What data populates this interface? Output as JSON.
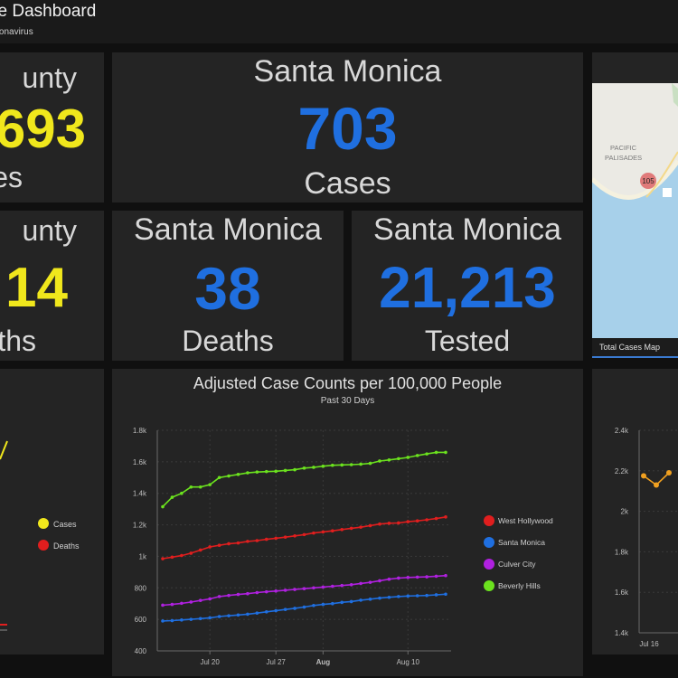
{
  "header": {
    "title": "se Dashboard",
    "subtitle": "oronavirus"
  },
  "colors": {
    "county": "#f0e71c",
    "santa_monica": "#1f6fe0",
    "panel_bg": "#242424"
  },
  "cards": {
    "county_cases": {
      "label": "unty",
      "value": "693",
      "caption": "es"
    },
    "sm_cases": {
      "label": "Santa Monica",
      "value": "703",
      "caption": "Cases"
    },
    "county_deaths": {
      "label": "unty",
      "value": "14",
      "caption": "ths"
    },
    "sm_deaths": {
      "label": "Santa Monica",
      "value": "38",
      "caption": "Deaths"
    },
    "sm_tested": {
      "label": "Santa Monica",
      "value": "21,213",
      "caption": "Tested"
    }
  },
  "map": {
    "place_label_1": "PACIFIC",
    "place_label_2": "PALISADES",
    "route_shield": "105",
    "tab_label": "Total Cases Map"
  },
  "left_legend": {
    "items": [
      {
        "label": "Cases",
        "color": "#f0e71c"
      },
      {
        "label": "Deaths",
        "color": "#e01e1e"
      }
    ]
  },
  "chart_data": [
    {
      "type": "line",
      "title": "Adjusted Case Counts per 100,000 People",
      "subtitle": "Past 30 Days",
      "xlabel": "",
      "ylabel": "",
      "ylim": [
        400,
        1800
      ],
      "y_ticks": [
        "400",
        "600",
        "800",
        "1k",
        "1.2k",
        "1.4k",
        "1.6k",
        "1.8k"
      ],
      "x_ticks": [
        {
          "label": "Jul 20",
          "index": 5,
          "bold": false
        },
        {
          "label": "Jul 27",
          "index": 12,
          "bold": false
        },
        {
          "label": "Aug",
          "index": 17,
          "bold": true
        },
        {
          "label": "Aug 10",
          "index": 26,
          "bold": false
        }
      ],
      "grid": true,
      "legend": "right",
      "series": [
        {
          "name": "West Hollywood",
          "color": "#e01e1e",
          "values": [
            985,
            995,
            1005,
            1020,
            1040,
            1060,
            1070,
            1080,
            1085,
            1095,
            1100,
            1108,
            1115,
            1122,
            1130,
            1138,
            1148,
            1155,
            1162,
            1170,
            1178,
            1185,
            1195,
            1205,
            1210,
            1212,
            1220,
            1225,
            1232,
            1240,
            1250
          ]
        },
        {
          "name": "Santa Monica",
          "color": "#1f6fe0",
          "values": [
            590,
            592,
            596,
            600,
            605,
            610,
            618,
            623,
            628,
            633,
            640,
            648,
            655,
            663,
            670,
            678,
            688,
            695,
            700,
            708,
            713,
            722,
            728,
            735,
            740,
            745,
            748,
            750,
            752,
            756,
            760
          ]
        },
        {
          "name": "Culver City",
          "color": "#b020e0",
          "values": [
            690,
            695,
            702,
            710,
            720,
            730,
            745,
            752,
            758,
            763,
            770,
            775,
            780,
            785,
            790,
            795,
            800,
            805,
            810,
            815,
            820,
            828,
            835,
            845,
            855,
            862,
            866,
            868,
            870,
            874,
            878
          ]
        },
        {
          "name": "Beverly Hills",
          "color": "#6be21e",
          "values": [
            1315,
            1375,
            1400,
            1440,
            1440,
            1455,
            1500,
            1510,
            1520,
            1530,
            1535,
            1538,
            1540,
            1545,
            1550,
            1560,
            1565,
            1572,
            1578,
            1580,
            1582,
            1585,
            1590,
            1605,
            1612,
            1620,
            1628,
            1640,
            1650,
            1660,
            1660
          ]
        }
      ]
    },
    {
      "type": "line",
      "title": "",
      "ylim": [
        1400,
        2400
      ],
      "y_ticks": [
        "1.4k",
        "1.6k",
        "1.8k",
        "2k",
        "2.2k",
        "2.4k"
      ],
      "x_ticks": [
        {
          "label": "Jul 16",
          "index": 0,
          "bold": false
        }
      ],
      "series": [
        {
          "color": "#f0a020",
          "values": [
            2175,
            2130,
            2190
          ]
        }
      ]
    }
  ]
}
